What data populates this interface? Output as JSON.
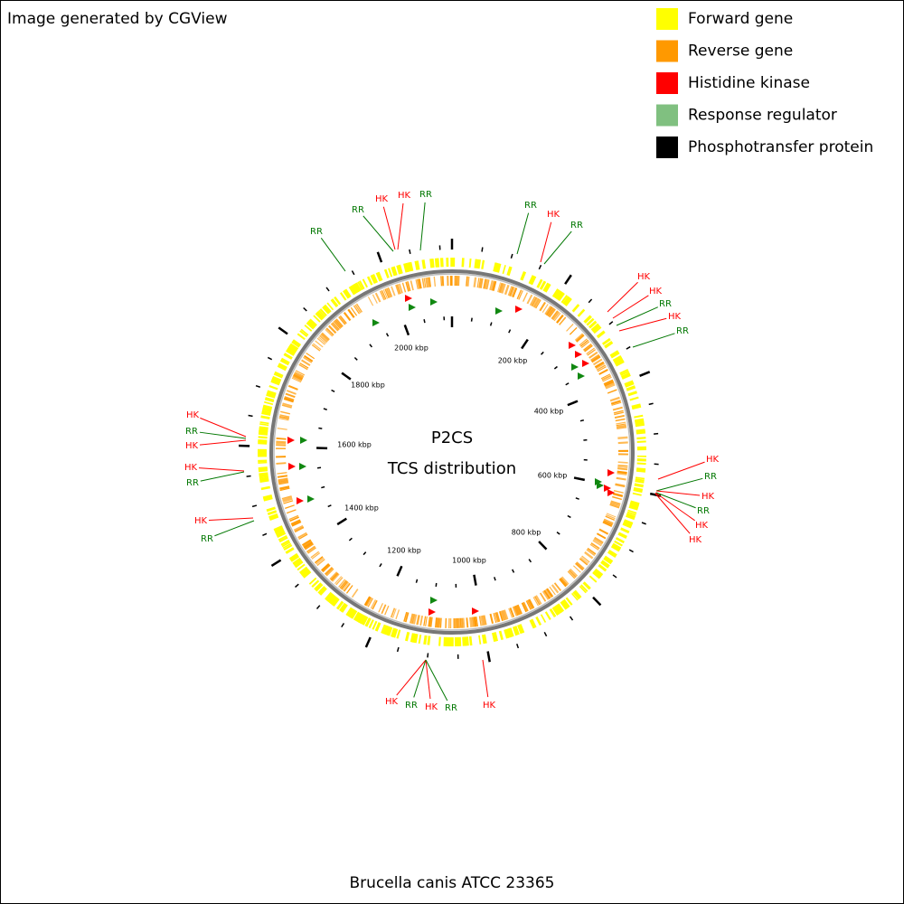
{
  "header": {
    "title": "Image generated by CGView"
  },
  "legend": [
    {
      "label": "Forward gene",
      "color": "#ffff00"
    },
    {
      "label": "Reverse gene",
      "color": "#ff9900"
    },
    {
      "label": "Histidine kinase",
      "color": "#ff0000"
    },
    {
      "label": "Response regulator",
      "color": "#80c080"
    },
    {
      "label": "Phosphotransfer protein",
      "color": "#000000"
    }
  ],
  "center": {
    "title": "P2CS",
    "subtitle": "TCS distribution"
  },
  "footer": "Brucella canis ATCC 23365",
  "scale_labels": [
    "200 kbp",
    "400 kbp",
    "600 kbp",
    "800 kbp",
    "1000 kbp",
    "1200 kbp",
    "1400 kbp",
    "1600 kbp",
    "1800 kbp",
    "2000 kbp"
  ],
  "features": [
    {
      "label": "RR",
      "color": "#007700"
    },
    {
      "label": "RR",
      "color": "#007700"
    },
    {
      "label": "HK",
      "color": "#ff0000"
    },
    {
      "label": "HK",
      "color": "#ff0000"
    },
    {
      "label": "RR",
      "color": "#007700"
    },
    {
      "label": "RR",
      "color": "#007700"
    },
    {
      "label": "HK",
      "color": "#ff0000"
    },
    {
      "label": "RR",
      "color": "#007700"
    },
    {
      "label": "HK",
      "color": "#ff0000"
    },
    {
      "label": "HK",
      "color": "#ff0000"
    },
    {
      "label": "RR",
      "color": "#007700"
    },
    {
      "label": "HK",
      "color": "#ff0000"
    },
    {
      "label": "RR",
      "color": "#007700"
    },
    {
      "label": "HK",
      "color": "#ff0000"
    },
    {
      "label": "RR",
      "color": "#007700"
    },
    {
      "label": "HK",
      "color": "#ff0000"
    },
    {
      "label": "RR",
      "color": "#007700"
    },
    {
      "label": "HK",
      "color": "#ff0000"
    },
    {
      "label": "HK",
      "color": "#ff0000"
    },
    {
      "label": "HK",
      "color": "#ff0000"
    },
    {
      "label": "RR",
      "color": "#007700"
    },
    {
      "label": "HK",
      "color": "#ff0000"
    },
    {
      "label": "HK",
      "color": "#ff0000"
    },
    {
      "label": "RR",
      "color": "#007700"
    },
    {
      "label": "HK",
      "color": "#ff0000"
    },
    {
      "label": "RR",
      "color": "#007700"
    },
    {
      "label": "HK",
      "color": "#ff0000"
    },
    {
      "label": "RR",
      "color": "#007700"
    },
    {
      "label": "HK",
      "color": "#ff0000"
    },
    {
      "label": "RR",
      "color": "#007700"
    },
    {
      "label": "HK",
      "color": "#ff0000"
    }
  ]
}
